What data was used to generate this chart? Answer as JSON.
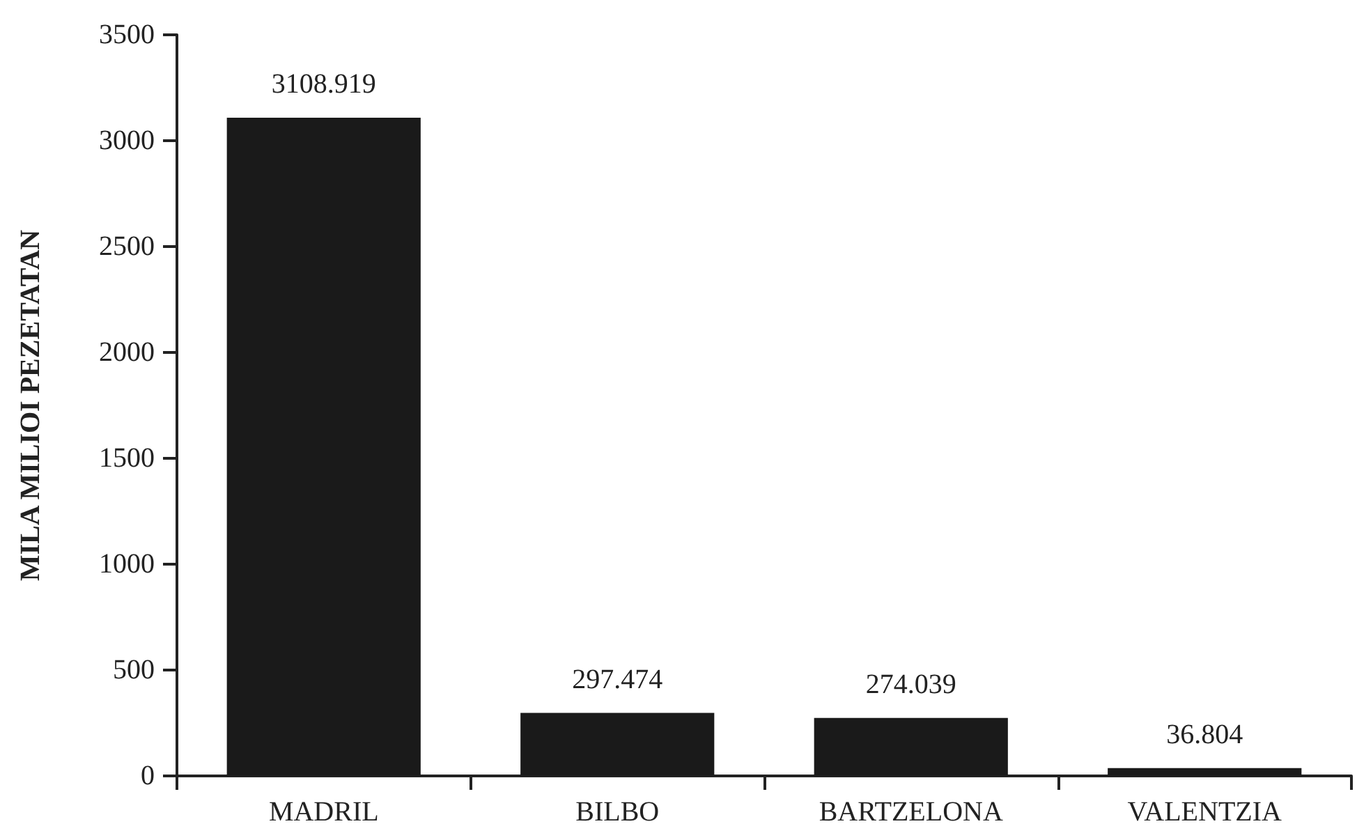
{
  "chart_data": {
    "type": "bar",
    "ylabel": "MILA MILIOI PEZETATAN",
    "categories": [
      "MADRIL",
      "BILBO",
      "BARTZELONA",
      "VALENTZIA"
    ],
    "values": [
      3108.919,
      297.474,
      274.039,
      36.804
    ],
    "color": "#1a1a1a",
    "ylim": [
      0,
      3500
    ],
    "yticks": [
      0,
      500,
      1000,
      1500,
      2000,
      2500,
      3000,
      3500
    ],
    "data_labels": true,
    "grid": false
  }
}
